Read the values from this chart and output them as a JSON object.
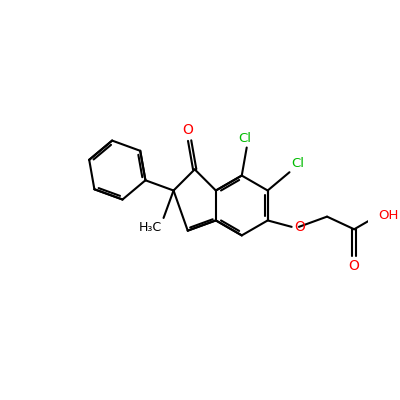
{
  "bg_color": "#ffffff",
  "bond_color": "#000000",
  "o_color": "#ff0000",
  "cl_color": "#00bb00",
  "figsize": [
    4.0,
    4.0
  ],
  "dpi": 100,
  "bond_lw": 1.5,
  "xlim": [
    0,
    10
  ],
  "ylim": [
    1,
    9
  ]
}
